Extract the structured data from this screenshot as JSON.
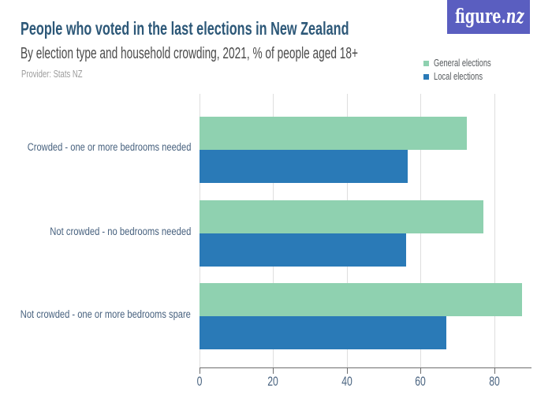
{
  "brand": {
    "logo_text_roman": "figure.",
    "logo_text_italic": "nz",
    "logo_background": "#5a5ec0",
    "logo_foreground": "#ffffff"
  },
  "chart_data": {
    "type": "bar",
    "orientation": "horizontal",
    "title": "People who voted in the last elections in New Zealand",
    "subtitle": "By election type and household crowding, 2021, % of people aged 18+",
    "provider": "Provider: Stats NZ",
    "categories": [
      "Crowded - one or more bedrooms needed",
      "Not crowded - no bedrooms needed",
      "Not crowded - one or more bedrooms spare"
    ],
    "series": [
      {
        "name": "General elections",
        "color": "#8fd1b0",
        "values": [
          72.5,
          77,
          87.5
        ]
      },
      {
        "name": "Local elections",
        "color": "#2a7ab7",
        "values": [
          56.5,
          56,
          67
        ]
      }
    ],
    "value_unit": "%",
    "xlim": [
      0,
      90
    ],
    "xticks": [
      0,
      20,
      40,
      60,
      80
    ],
    "grid": true,
    "legend_position": "top-right",
    "title_color": "#2d5878",
    "subtitle_color": "#4a4a4a",
    "provider_color": "#9c9c9c",
    "axis_label_color": "#48627f",
    "gridline_color": "#dedede",
    "axis_line_color": "#6e6e6e"
  }
}
